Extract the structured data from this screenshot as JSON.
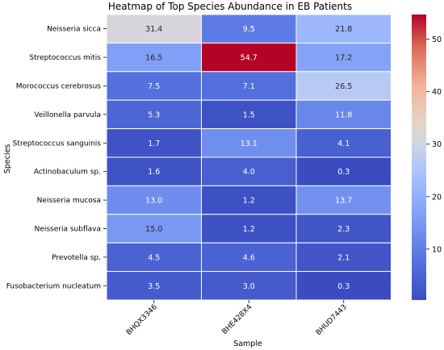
{
  "chart_data": {
    "type": "heatmap",
    "title": "Heatmap of Top Species Abundance in EB Patients",
    "xlabel": "Sample",
    "ylabel": "Species",
    "columns": [
      "BHQX3346",
      "BHE428X4",
      "BHUD7443"
    ],
    "rows": [
      "Neisseria sicca",
      "Streptococcus mitis",
      "Morococcus cerebrosus",
      "Veillonella parvula",
      "Streptococcus sanguinis",
      "Actinobaculum sp.",
      "Neisseria mucosa",
      "Neisseria subflava",
      "Prevotella sp.",
      "Fusobacterium nucleatum"
    ],
    "values": [
      [
        31.4,
        9.5,
        21.8
      ],
      [
        16.5,
        54.7,
        17.2
      ],
      [
        7.5,
        7.1,
        26.5
      ],
      [
        5.3,
        1.5,
        11.8
      ],
      [
        1.7,
        13.1,
        4.1
      ],
      [
        1.6,
        4.0,
        0.3
      ],
      [
        13.0,
        1.2,
        13.7
      ],
      [
        15.0,
        1.2,
        2.3
      ],
      [
        4.5,
        4.6,
        2.1
      ],
      [
        3.5,
        3.0,
        0.3
      ]
    ],
    "colormap": "coolwarm",
    "vmin": 0.3,
    "vmax": 54.7,
    "colorbar_ticks": [
      10,
      20,
      30,
      40,
      50
    ]
  }
}
